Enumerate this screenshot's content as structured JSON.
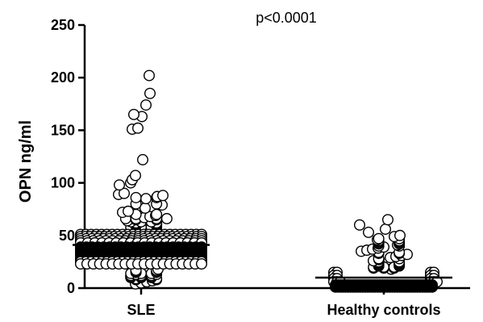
{
  "chart_data": {
    "type": "scatter",
    "title": "",
    "ylabel": "OPN ng/ml",
    "xlabel": "",
    "ylim": [
      0,
      250
    ],
    "yticks": [
      0,
      50,
      100,
      150,
      200,
      250
    ],
    "categories": [
      "SLE",
      "Healthy controls"
    ],
    "annotation": "p<0.0001",
    "grid": false,
    "series": [
      {
        "category": "SLE",
        "median": 41,
        "high_points": [
          202,
          185,
          174,
          165,
          163,
          152,
          151,
          122,
          107,
          103,
          100,
          98,
          90,
          89,
          88,
          87,
          86,
          86,
          85,
          80,
          80,
          79,
          76,
          73,
          72,
          70,
          70,
          69,
          68,
          67,
          66,
          66,
          66,
          66,
          65,
          65,
          64,
          63,
          63,
          63,
          62,
          62,
          61,
          61,
          60,
          60,
          59,
          59,
          58,
          58,
          58,
          57,
          57,
          56,
          56,
          56,
          55,
          55
        ],
        "dense_band": [
          {
            "y": 51,
            "count": 24
          },
          {
            "y": 49,
            "count": 26
          },
          {
            "y": 47,
            "count": 22
          },
          {
            "y": 45,
            "count": 20
          },
          {
            "y": 43,
            "count": 18
          },
          {
            "y": 39,
            "count": 22
          },
          {
            "y": 37,
            "count": 26
          },
          {
            "y": 35,
            "count": 30
          },
          {
            "y": 33,
            "count": 32
          },
          {
            "y": 31,
            "count": 32
          },
          {
            "y": 29,
            "count": 30
          },
          {
            "y": 27,
            "count": 28
          },
          {
            "y": 25,
            "count": 24
          },
          {
            "y": 23,
            "count": 20
          }
        ],
        "low_points": [
          18,
          17,
          17,
          16,
          16,
          15,
          15,
          14,
          14,
          14,
          13,
          13,
          12,
          12,
          12,
          11,
          11,
          11,
          10,
          10,
          10,
          9,
          9,
          8,
          8,
          7,
          6,
          5,
          4
        ]
      },
      {
        "category": "Healthy controls",
        "median": 10,
        "high_points": [
          65,
          60,
          56,
          53,
          50,
          49,
          47,
          47,
          46,
          45,
          45,
          44,
          44,
          43,
          43,
          42,
          42,
          41,
          40,
          40,
          39,
          38,
          37,
          36,
          35,
          34,
          34,
          33,
          33,
          32,
          31,
          30,
          29,
          28,
          28,
          27,
          26,
          25,
          25,
          24,
          24,
          23,
          23,
          22,
          22,
          21,
          21,
          20,
          20,
          20,
          19,
          19,
          19,
          18
        ],
        "dense_band": [
          {
            "y": 15,
            "count": 4
          },
          {
            "y": 12,
            "count": 4
          },
          {
            "y": 9,
            "count": 4
          },
          {
            "y": 6,
            "count": 6
          },
          {
            "y": 3,
            "count": 40
          },
          {
            "y": 1,
            "count": 40
          }
        ],
        "low_points": []
      }
    ]
  }
}
